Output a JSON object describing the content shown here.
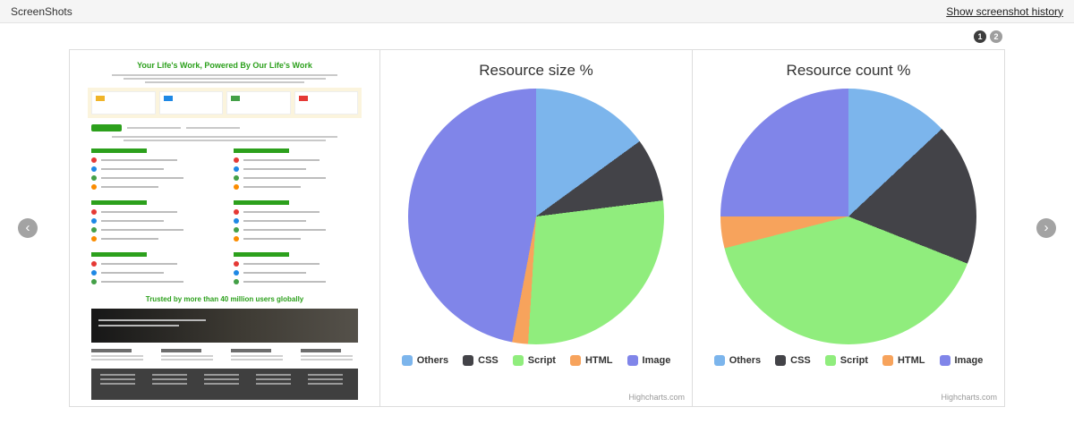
{
  "header": {
    "title": "ScreenShots",
    "history_link": "Show screenshot history"
  },
  "pagination": {
    "pages": [
      "1",
      "2"
    ],
    "active_index": 0
  },
  "icons": {
    "prev": "‹",
    "next": "›"
  },
  "thumbnail": {
    "headline": "Your Life's Work, Powered By Our Life's Work",
    "trusted_line": "Trusted by more than 40 million users globally"
  },
  "chart_data": [
    {
      "type": "pie",
      "title": "Resource size %",
      "labels": [
        "Others",
        "CSS",
        "Script",
        "HTML",
        "Image"
      ],
      "values": [
        15,
        8,
        28,
        2,
        47
      ],
      "colors": [
        "#7cb5ec",
        "#434348",
        "#90ed7d",
        "#f7a35c",
        "#8085e9"
      ],
      "legend_position": "bottom",
      "credit": "Highcharts.com"
    },
    {
      "type": "pie",
      "title": "Resource count %",
      "labels": [
        "Others",
        "CSS",
        "Script",
        "HTML",
        "Image"
      ],
      "values": [
        13,
        18,
        40,
        4,
        25
      ],
      "colors": [
        "#7cb5ec",
        "#434348",
        "#90ed7d",
        "#f7a35c",
        "#8085e9"
      ],
      "legend_position": "bottom",
      "credit": "Highcharts.com"
    }
  ]
}
